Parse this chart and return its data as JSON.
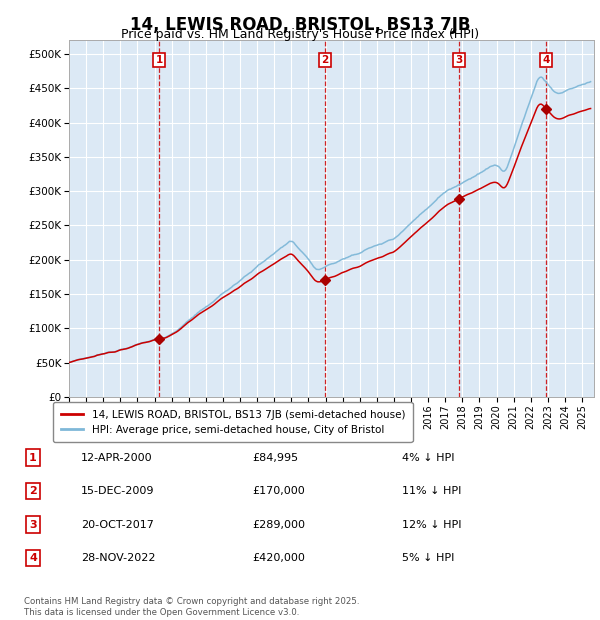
{
  "title": "14, LEWIS ROAD, BRISTOL, BS13 7JB",
  "subtitle": "Price paid vs. HM Land Registry's House Price Index (HPI)",
  "background_color": "#ffffff",
  "plot_bg_color": "#dce9f5",
  "grid_color": "#ffffff",
  "hpi_line_color": "#7fb8d8",
  "price_line_color": "#cc0000",
  "sale_marker_color": "#aa0000",
  "vline_color": "#cc0000",
  "ylim": [
    0,
    520000
  ],
  "yticks": [
    0,
    50000,
    100000,
    150000,
    200000,
    250000,
    300000,
    350000,
    400000,
    450000,
    500000
  ],
  "ytick_labels": [
    "£0",
    "£50K",
    "£100K",
    "£150K",
    "£200K",
    "£250K",
    "£300K",
    "£350K",
    "£400K",
    "£450K",
    "£500K"
  ],
  "xmin": 1995,
  "xmax": 2025.7,
  "legend_label_price": "14, LEWIS ROAD, BRISTOL, BS13 7JB (semi-detached house)",
  "legend_label_hpi": "HPI: Average price, semi-detached house, City of Bristol",
  "sales": [
    {
      "num": 1,
      "year": 2000.28,
      "price": 84995
    },
    {
      "num": 2,
      "year": 2009.96,
      "price": 170000
    },
    {
      "num": 3,
      "year": 2017.8,
      "price": 289000
    },
    {
      "num": 4,
      "year": 2022.91,
      "price": 420000
    }
  ],
  "table_rows": [
    {
      "num": 1,
      "date": "12-APR-2000",
      "price": "£84,995",
      "pct": "4% ↓ HPI"
    },
    {
      "num": 2,
      "date": "15-DEC-2009",
      "price": "£170,000",
      "pct": "11% ↓ HPI"
    },
    {
      "num": 3,
      "date": "20-OCT-2017",
      "price": "£289,000",
      "pct": "12% ↓ HPI"
    },
    {
      "num": 4,
      "date": "28-NOV-2022",
      "price": "£420,000",
      "pct": "5% ↓ HPI"
    }
  ],
  "footer": "Contains HM Land Registry data © Crown copyright and database right 2025.\nThis data is licensed under the Open Government Licence v3.0."
}
